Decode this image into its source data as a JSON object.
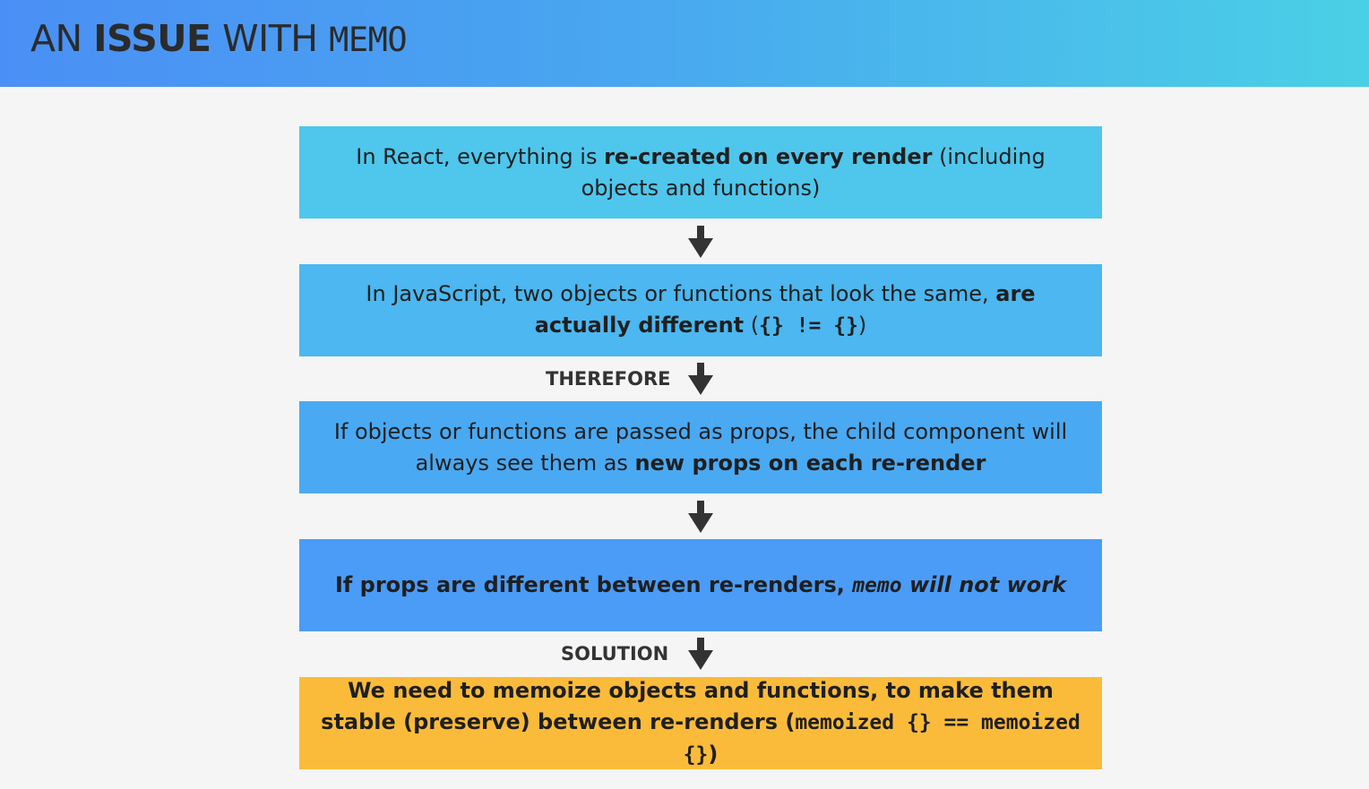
{
  "header": {
    "title_part1": "AN ",
    "title_part2": "ISSUE",
    "title_part3": " WITH ",
    "title_part4": "MEMO"
  },
  "boxes": [
    {
      "t1": "In React, everything is ",
      "b1": "re-created on every render",
      "t2": " (including objects and functions)"
    },
    {
      "t1": "In JavaScript, two objects or functions that look the same, ",
      "b1": "are actually different",
      "t2": " (",
      "code": "{} != {}",
      "t3": ")"
    },
    {
      "t1": "If objects or functions are passed as props, the child component will always see them as ",
      "b1": "new props on each re-render"
    },
    {
      "t1": "If props are different between re-renders, ",
      "code": "memo",
      "t2": " will not work"
    },
    {
      "t1": "We need to memoize objects and functions, to make them stable (preserve) between re-renders (",
      "code": "memoized {} == memoized {}",
      "t2": ")"
    }
  ],
  "arrow_labels": {
    "therefore": "THEREFORE",
    "solution": "SOLUTION"
  },
  "colors": {
    "header_start": "#4a8ff5",
    "header_end": "#4ad0e6",
    "box1": "#4fc6ec",
    "box2": "#4cb7f0",
    "box3": "#4aa9f3",
    "box4": "#4b9cf7",
    "box5": "#fbbb3a",
    "arrow": "#333333"
  }
}
